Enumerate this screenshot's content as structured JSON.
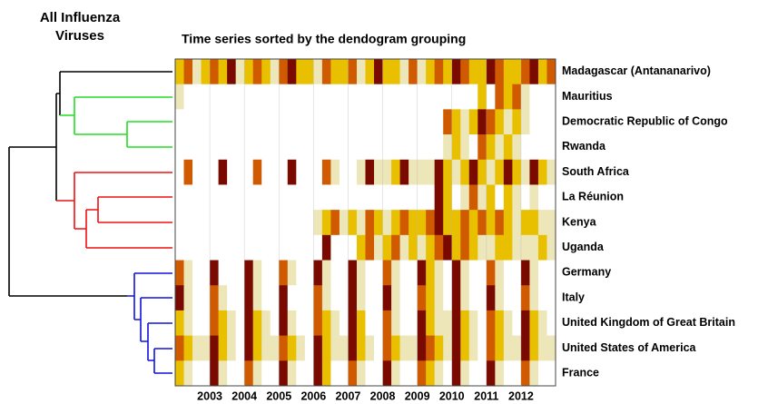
{
  "chart_data": {
    "type": "heatmap",
    "title_lines": [
      "All Influenza",
      "Viruses"
    ],
    "subtitle": "Time series sorted by the dendogram grouping",
    "rows": [
      "Madagascar (Antananarivo)",
      "Mauritius",
      "Democratic Republic of Congo",
      "Rwanda",
      "South Africa",
      "La Réunion",
      "Kenya",
      "Uganda",
      "Germany",
      "Italy",
      "United Kingdom of Great Britain",
      "United States of America",
      "France"
    ],
    "years": [
      2003,
      2004,
      2005,
      2006,
      2007,
      2008,
      2009,
      2010,
      2011,
      2012
    ],
    "colors": [
      "#ffffff",
      "#ece6b8",
      "#e8c000",
      "#d05a00",
      "#7a0a00"
    ],
    "values": [
      [
        2,
        3,
        1,
        2,
        3,
        2,
        4,
        1,
        2,
        3,
        2,
        1,
        3,
        4,
        2,
        2,
        1,
        3,
        2,
        2,
        3,
        1,
        2,
        4,
        2,
        2,
        1,
        3,
        1,
        2,
        3,
        2,
        4,
        3,
        2,
        2,
        4,
        3,
        2,
        2,
        3,
        4,
        2,
        3
      ],
      [
        1,
        0,
        0,
        0,
        0,
        0,
        0,
        0,
        0,
        0,
        0,
        0,
        0,
        0,
        0,
        0,
        0,
        0,
        0,
        0,
        0,
        0,
        0,
        0,
        0,
        0,
        0,
        0,
        0,
        0,
        0,
        0,
        0,
        0,
        0,
        2,
        0,
        3,
        2,
        3,
        1,
        0,
        0,
        0
      ],
      [
        0,
        0,
        0,
        0,
        0,
        0,
        0,
        0,
        0,
        0,
        0,
        0,
        0,
        0,
        0,
        0,
        0,
        0,
        0,
        0,
        0,
        0,
        0,
        0,
        0,
        0,
        0,
        0,
        0,
        0,
        0,
        3,
        2,
        1,
        2,
        4,
        3,
        2,
        1,
        2,
        1,
        0,
        0,
        0
      ],
      [
        0,
        0,
        0,
        0,
        0,
        0,
        0,
        0,
        0,
        0,
        0,
        0,
        0,
        0,
        0,
        0,
        0,
        0,
        0,
        0,
        0,
        0,
        0,
        0,
        0,
        0,
        0,
        0,
        0,
        0,
        0,
        1,
        2,
        1,
        0,
        3,
        2,
        1,
        2,
        1,
        0,
        0,
        0,
        0
      ],
      [
        0,
        3,
        0,
        0,
        0,
        4,
        0,
        0,
        0,
        3,
        0,
        0,
        0,
        4,
        0,
        0,
        0,
        3,
        1,
        0,
        0,
        1,
        4,
        1,
        1,
        2,
        4,
        1,
        1,
        1,
        4,
        2,
        1,
        2,
        4,
        2,
        1,
        2,
        4,
        2,
        1,
        4,
        2,
        1
      ],
      [
        0,
        0,
        0,
        0,
        0,
        0,
        0,
        0,
        0,
        0,
        0,
        0,
        0,
        0,
        0,
        0,
        0,
        0,
        0,
        0,
        0,
        0,
        0,
        0,
        0,
        0,
        0,
        0,
        0,
        0,
        4,
        2,
        0,
        1,
        3,
        1,
        2,
        0,
        2,
        1,
        0,
        1,
        0,
        0
      ],
      [
        0,
        0,
        0,
        0,
        0,
        0,
        0,
        0,
        0,
        0,
        0,
        0,
        0,
        0,
        0,
        0,
        1,
        2,
        3,
        1,
        2,
        1,
        3,
        2,
        1,
        2,
        3,
        2,
        2,
        3,
        4,
        2,
        2,
        3,
        2,
        3,
        2,
        3,
        2,
        1,
        2,
        2,
        1,
        1
      ],
      [
        0,
        0,
        0,
        0,
        0,
        0,
        0,
        0,
        0,
        0,
        0,
        0,
        0,
        0,
        0,
        0,
        0,
        4,
        0,
        0,
        0,
        2,
        3,
        1,
        2,
        3,
        1,
        2,
        1,
        2,
        3,
        4,
        2,
        3,
        2,
        1,
        1,
        2,
        2,
        1,
        1,
        1,
        2,
        1
      ],
      [
        3,
        1,
        0,
        0,
        4,
        0,
        0,
        0,
        4,
        1,
        0,
        0,
        3,
        1,
        0,
        0,
        4,
        1,
        0,
        0,
        4,
        1,
        0,
        0,
        3,
        1,
        0,
        0,
        4,
        2,
        1,
        0,
        4,
        1,
        0,
        0,
        3,
        1,
        0,
        0,
        4,
        1,
        0,
        0
      ],
      [
        4,
        1,
        0,
        0,
        3,
        1,
        0,
        0,
        4,
        1,
        0,
        0,
        4,
        0,
        0,
        0,
        3,
        1,
        0,
        0,
        4,
        1,
        0,
        0,
        4,
        1,
        0,
        0,
        3,
        2,
        1,
        0,
        4,
        1,
        0,
        0,
        4,
        1,
        0,
        0,
        3,
        1,
        0,
        0
      ],
      [
        2,
        1,
        0,
        0,
        3,
        2,
        1,
        0,
        4,
        2,
        1,
        0,
        4,
        1,
        0,
        0,
        3,
        2,
        1,
        0,
        4,
        2,
        0,
        0,
        3,
        1,
        0,
        0,
        4,
        2,
        1,
        1,
        4,
        2,
        1,
        0,
        3,
        2,
        1,
        0,
        4,
        2,
        1,
        0
      ],
      [
        3,
        2,
        1,
        1,
        4,
        2,
        1,
        0,
        4,
        2,
        1,
        1,
        3,
        2,
        1,
        0,
        4,
        2,
        1,
        1,
        4,
        2,
        1,
        0,
        3,
        2,
        1,
        1,
        4,
        3,
        2,
        1,
        4,
        2,
        1,
        0,
        3,
        2,
        1,
        1,
        4,
        2,
        1,
        1
      ],
      [
        2,
        1,
        0,
        0,
        4,
        1,
        0,
        0,
        3,
        1,
        0,
        0,
        4,
        1,
        0,
        0,
        4,
        2,
        0,
        0,
        3,
        1,
        0,
        0,
        4,
        1,
        0,
        0,
        3,
        2,
        1,
        0,
        4,
        1,
        0,
        0,
        4,
        1,
        0,
        0,
        3,
        1,
        0,
        0
      ]
    ]
  }
}
